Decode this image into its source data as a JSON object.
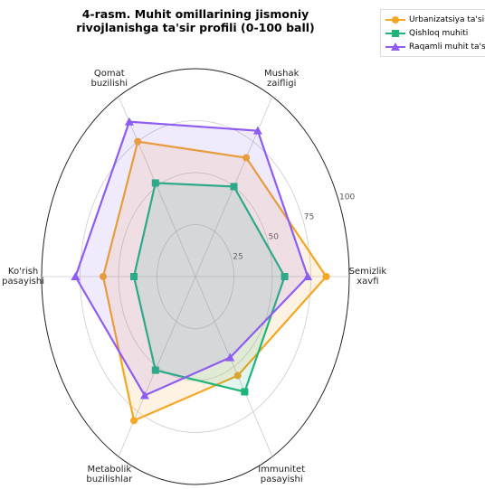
{
  "chart_data": {
    "type": "radar",
    "title": "4-rasm. Muhit omillarining jismoniy\nrivojlanishga ta'sir profili (0-100 ball)",
    "categories": [
      "Semizlik\nxavfi",
      "Mushak\nzaifligi",
      "Qomat\nbuzilishi",
      "Ko'rish\npasayishi",
      "Metabolik\nbuzilishlar",
      "Immunitet\npasayishi"
    ],
    "series": [
      {
        "name": "Urbanizatsiya ta'siri",
        "color": "#f5a623",
        "marker": "circle",
        "values": [
          85,
          66,
          75,
          60,
          80,
          55
        ]
      },
      {
        "name": "Qishloq muhiti",
        "color": "#1fb57a",
        "marker": "square",
        "values": [
          58,
          50,
          52,
          40,
          52,
          64
        ]
      },
      {
        "name": "Raqamli muhit ta'siri",
        "color": "#8e5cf0",
        "marker": "triangle",
        "values": [
          73,
          81,
          86,
          78,
          66,
          45
        ]
      }
    ],
    "ylim": [
      0,
      100
    ],
    "yticks": [
      25,
      50,
      75,
      100
    ],
    "grid": true,
    "legend": "upper right"
  }
}
